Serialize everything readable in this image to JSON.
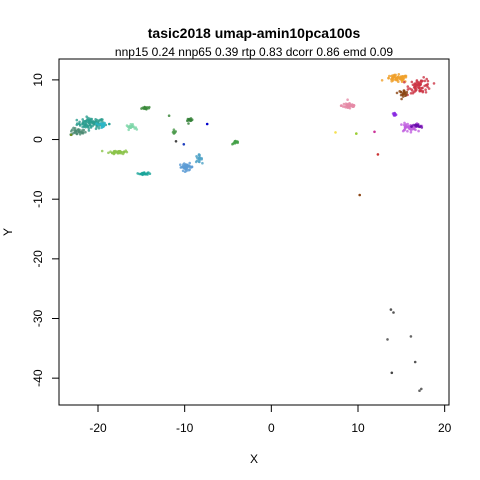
{
  "chart_data": {
    "type": "scatter",
    "title": "tasic2018 umap-amin10pca100s",
    "subtitle": "nnp15 0.24 nnp65 0.39 rtp 0.83 dcorr 0.86 emd 0.09",
    "xlabel": "X",
    "ylabel": "Y",
    "xlim": [
      -24.5,
      20.5
    ],
    "ylim": [
      -44.5,
      13.5
    ],
    "xticks": [
      -20,
      -10,
      0,
      10,
      20
    ],
    "yticks": [
      10,
      0,
      -10,
      -20,
      -30,
      -40
    ],
    "grid": false,
    "legend": "none",
    "clusters": [
      {
        "x": -20.8,
        "y": 2.7,
        "sx": 1.6,
        "sy": 0.9,
        "n": 90,
        "color": "#2a9d8f"
      },
      {
        "x": -22.3,
        "y": 1.3,
        "sx": 0.9,
        "sy": 0.6,
        "n": 30,
        "color": "#4a8a72"
      },
      {
        "x": -19.6,
        "y": 2.4,
        "sx": 0.5,
        "sy": 0.5,
        "n": 20,
        "color": "#2cb6c8"
      },
      {
        "x": -17.6,
        "y": -2.1,
        "sx": 1.1,
        "sy": 0.3,
        "n": 45,
        "color": "#8bc34a"
      },
      {
        "x": -16.2,
        "y": 2.1,
        "sx": 0.5,
        "sy": 0.4,
        "n": 20,
        "color": "#7cd6a8"
      },
      {
        "x": -14.6,
        "y": 5.3,
        "sx": 0.5,
        "sy": 0.3,
        "n": 14,
        "color": "#3a8a3a"
      },
      {
        "x": -14.7,
        "y": -5.7,
        "sx": 0.5,
        "sy": 0.2,
        "n": 28,
        "color": "#1aa59a"
      },
      {
        "x": -11.2,
        "y": 1.3,
        "sx": 0.2,
        "sy": 0.4,
        "n": 8,
        "color": "#4c9a4c"
      },
      {
        "x": -9.4,
        "y": 3.2,
        "sx": 0.3,
        "sy": 0.3,
        "n": 10,
        "color": "#2e7d32"
      },
      {
        "x": -9.8,
        "y": -4.6,
        "sx": 0.8,
        "sy": 0.6,
        "n": 40,
        "color": "#5b9bd5"
      },
      {
        "x": -8.4,
        "y": -3.2,
        "sx": 0.4,
        "sy": 0.6,
        "n": 18,
        "color": "#4fa3c7"
      },
      {
        "x": -4.1,
        "y": -0.5,
        "sx": 0.4,
        "sy": 0.3,
        "n": 14,
        "color": "#43a047"
      },
      {
        "x": 9.0,
        "y": 5.7,
        "sx": 0.9,
        "sy": 0.6,
        "n": 40,
        "color": "#e58aa6"
      },
      {
        "x": 14.5,
        "y": 10.2,
        "sx": 1.3,
        "sy": 0.6,
        "n": 60,
        "color": "#f0a02b"
      },
      {
        "x": 17.2,
        "y": 9.0,
        "sx": 1.3,
        "sy": 1.2,
        "n": 70,
        "color": "#cc3344"
      },
      {
        "x": 15.2,
        "y": 7.8,
        "sx": 0.6,
        "sy": 0.5,
        "n": 22,
        "color": "#8b4513"
      },
      {
        "x": 15.8,
        "y": 2.0,
        "sx": 1.0,
        "sy": 0.7,
        "n": 45,
        "color": "#c060e0"
      },
      {
        "x": 14.2,
        "y": 4.2,
        "sx": 0.3,
        "sy": 0.3,
        "n": 10,
        "color": "#8a2be2"
      },
      {
        "x": 16.8,
        "y": 2.2,
        "sx": 0.6,
        "sy": 0.4,
        "n": 16,
        "color": "#6a0dad"
      }
    ],
    "points": [
      {
        "x": -23.1,
        "y": 0.8,
        "color": "#6b8e23"
      },
      {
        "x": -18.7,
        "y": 2.6,
        "color": "#2aa198"
      },
      {
        "x": -11.0,
        "y": -0.3,
        "color": "#444444"
      },
      {
        "x": -10.1,
        "y": -0.8,
        "color": "#1f3fbf"
      },
      {
        "x": -7.4,
        "y": 2.6,
        "color": "#0000cc"
      },
      {
        "x": -11.8,
        "y": 4.0,
        "color": "#5a9a5a"
      },
      {
        "x": 7.4,
        "y": 1.2,
        "color": "#f5e050"
      },
      {
        "x": 9.8,
        "y": 1.0,
        "color": "#9acd32"
      },
      {
        "x": 11.9,
        "y": 1.3,
        "color": "#cc3399"
      },
      {
        "x": 12.3,
        "y": -2.5,
        "color": "#cc3333"
      },
      {
        "x": 10.2,
        "y": -9.3,
        "color": "#8b4513"
      },
      {
        "x": 13.8,
        "y": -28.5,
        "color": "#555555"
      },
      {
        "x": 14.1,
        "y": -29.0,
        "color": "#555555"
      },
      {
        "x": 13.4,
        "y": -33.5,
        "color": "#666666"
      },
      {
        "x": 16.1,
        "y": -33.0,
        "color": "#666666"
      },
      {
        "x": 16.6,
        "y": -37.3,
        "color": "#555555"
      },
      {
        "x": 13.9,
        "y": -39.1,
        "color": "#444444"
      },
      {
        "x": 17.1,
        "y": -42.1,
        "color": "#666666"
      },
      {
        "x": 17.3,
        "y": -41.8,
        "color": "#666666"
      }
    ]
  }
}
